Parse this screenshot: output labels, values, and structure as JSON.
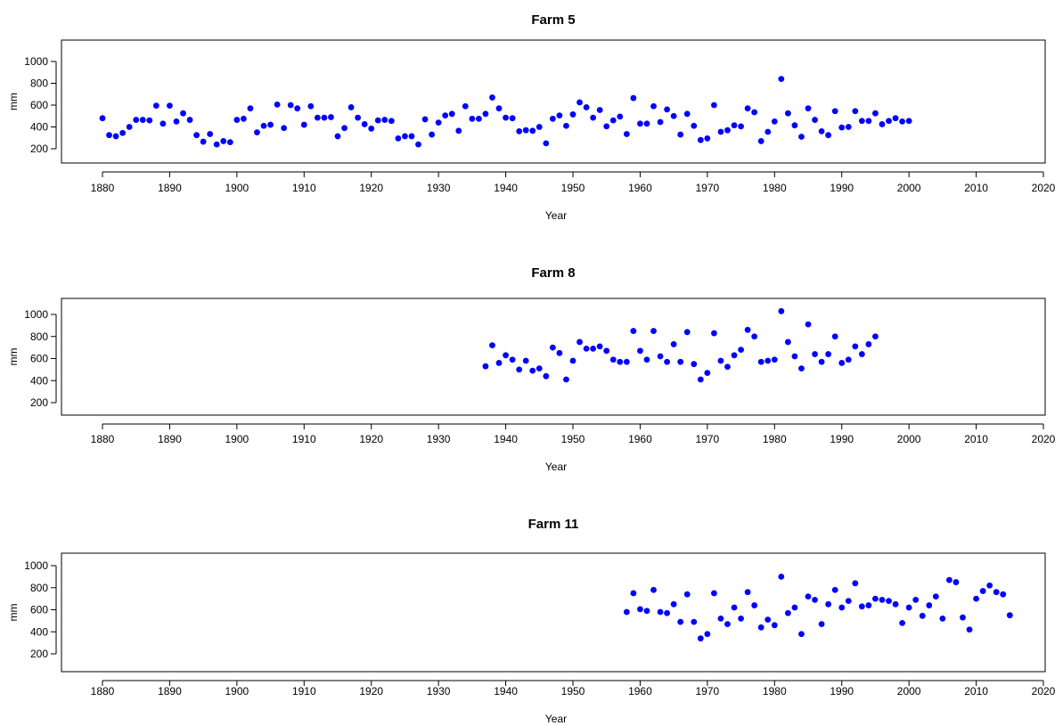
{
  "chart_data": [
    {
      "type": "scatter",
      "title": "Farm 5",
      "xlabel": "Year",
      "ylabel": "mm",
      "xlim": [
        1880,
        2020
      ],
      "ylim": [
        200,
        1000
      ],
      "xticks": [
        "1880",
        "1890",
        "1900",
        "1910",
        "1920",
        "1930",
        "1940",
        "1950",
        "1960",
        "1970",
        "1980",
        "1990",
        "2000",
        "2010",
        "2020"
      ],
      "yticks": [
        "200",
        "400",
        "600",
        "800",
        "1000"
      ],
      "grid": false,
      "point_color": "#0000ff",
      "series": [
        {
          "x": [
            1880,
            1881,
            1882,
            1883,
            1884,
            1885,
            1886,
            1887,
            1888,
            1889,
            1890,
            1891,
            1892,
            1893,
            1894,
            1895,
            1896,
            1897,
            1898,
            1899,
            1900,
            1901,
            1902,
            1903,
            1904,
            1905,
            1906,
            1907,
            1908,
            1909,
            1910,
            1911,
            1912,
            1913,
            1914,
            1915,
            1916,
            1917,
            1918,
            1919,
            1920,
            1921,
            1922,
            1923,
            1924,
            1925,
            1926,
            1927,
            1928,
            1929,
            1930,
            1931,
            1932,
            1933,
            1934,
            1935,
            1936,
            1937,
            1938,
            1939,
            1940,
            1941,
            1942,
            1943,
            1944,
            1945,
            1946,
            1947,
            1948,
            1949,
            1950,
            1951,
            1952,
            1953,
            1954,
            1955,
            1956,
            1957,
            1958,
            1959,
            1960,
            1961,
            1962,
            1963,
            1964,
            1965,
            1966,
            1967,
            1968,
            1969,
            1970,
            1971,
            1972,
            1973,
            1974,
            1975,
            1976,
            1977,
            1978,
            1979,
            1980,
            1981,
            1982,
            1983,
            1984,
            1985,
            1986,
            1987,
            1988,
            1989,
            1990,
            1991,
            1992,
            1993,
            1994,
            1995,
            1996,
            1997,
            1998,
            1999,
            2000
          ],
          "y": [
            480,
            325,
            315,
            345,
            400,
            465,
            465,
            460,
            595,
            430,
            595,
            450,
            525,
            465,
            325,
            265,
            335,
            240,
            270,
            260,
            465,
            475,
            570,
            350,
            410,
            420,
            605,
            390,
            600,
            570,
            420,
            590,
            485,
            485,
            490,
            315,
            390,
            580,
            485,
            425,
            385,
            460,
            465,
            455,
            295,
            315,
            315,
            240,
            470,
            330,
            440,
            505,
            520,
            365,
            590,
            475,
            475,
            520,
            670,
            570,
            485,
            480,
            360,
            370,
            365,
            400,
            250,
            475,
            505,
            410,
            515,
            625,
            580,
            485,
            555,
            405,
            460,
            495,
            335,
            665,
            430,
            430,
            590,
            445,
            560,
            500,
            330,
            520,
            410,
            280,
            295,
            600,
            355,
            370,
            415,
            405,
            570,
            535,
            270,
            355,
            450,
            840,
            525,
            415,
            310,
            570,
            465,
            360,
            325,
            545,
            395,
            400,
            545,
            455,
            455,
            525,
            425,
            455,
            480,
            450,
            455
          ]
        }
      ]
    },
    {
      "type": "scatter",
      "title": "Farm 8",
      "xlabel": "Year",
      "ylabel": "mm",
      "xlim": [
        1880,
        2020
      ],
      "ylim": [
        200,
        1000
      ],
      "xticks": [
        "1880",
        "1890",
        "1900",
        "1910",
        "1920",
        "1930",
        "1940",
        "1950",
        "1960",
        "1970",
        "1980",
        "1990",
        "2000",
        "2010",
        "2020"
      ],
      "yticks": [
        "200",
        "400",
        "600",
        "800",
        "1000"
      ],
      "grid": false,
      "point_color": "#0000ff",
      "series": [
        {
          "x": [
            1937,
            1938,
            1939,
            1940,
            1941,
            1942,
            1943,
            1944,
            1945,
            1946,
            1947,
            1948,
            1949,
            1950,
            1951,
            1952,
            1953,
            1954,
            1955,
            1956,
            1957,
            1958,
            1959,
            1960,
            1961,
            1962,
            1963,
            1964,
            1965,
            1966,
            1967,
            1968,
            1969,
            1970,
            1971,
            1972,
            1973,
            1974,
            1975,
            1976,
            1977,
            1978,
            1979,
            1980,
            1981,
            1982,
            1983,
            1984,
            1985,
            1986,
            1987,
            1988,
            1989,
            1990,
            1991,
            1992,
            1993,
            1994,
            1995
          ],
          "y": [
            530,
            720,
            560,
            630,
            590,
            500,
            580,
            490,
            510,
            440,
            700,
            650,
            410,
            580,
            750,
            690,
            690,
            710,
            670,
            590,
            570,
            570,
            850,
            670,
            590,
            850,
            620,
            570,
            730,
            570,
            840,
            550,
            410,
            470,
            830,
            580,
            525,
            630,
            680,
            860,
            800,
            570,
            580,
            590,
            1030,
            750,
            620,
            510,
            910,
            640,
            570,
            640,
            800,
            560,
            590,
            710,
            640,
            730,
            800
          ]
        }
      ]
    },
    {
      "type": "scatter",
      "title": "Farm 11",
      "xlabel": "Year",
      "ylabel": "mm",
      "xlim": [
        1880,
        2020
      ],
      "ylim": [
        200,
        1000
      ],
      "xticks": [
        "1880",
        "1890",
        "1900",
        "1910",
        "1920",
        "1930",
        "1940",
        "1950",
        "1960",
        "1970",
        "1980",
        "1990",
        "2000",
        "2010",
        "2020"
      ],
      "yticks": [
        "200",
        "400",
        "600",
        "800",
        "1000"
      ],
      "grid": false,
      "point_color": "#0000ff",
      "series": [
        {
          "x": [
            1958,
            1959,
            1960,
            1961,
            1962,
            1963,
            1964,
            1965,
            1966,
            1967,
            1968,
            1969,
            1970,
            1971,
            1972,
            1973,
            1974,
            1975,
            1976,
            1977,
            1978,
            1979,
            1980,
            1981,
            1982,
            1983,
            1984,
            1985,
            1986,
            1987,
            1988,
            1989,
            1990,
            1991,
            1992,
            1993,
            1994,
            1995,
            1996,
            1997,
            1998,
            1999,
            2000,
            2001,
            2002,
            2003,
            2004,
            2005,
            2006,
            2007,
            2008,
            2009,
            2010,
            2011,
            2012,
            2013,
            2014,
            2015
          ],
          "y": [
            580,
            750,
            605,
            590,
            780,
            580,
            570,
            650,
            490,
            740,
            490,
            340,
            380,
            750,
            520,
            470,
            620,
            520,
            760,
            640,
            440,
            510,
            460,
            900,
            570,
            620,
            380,
            720,
            690,
            470,
            650,
            780,
            620,
            680,
            840,
            630,
            640,
            700,
            690,
            680,
            650,
            480,
            620,
            690,
            545,
            640,
            720,
            520,
            870,
            850,
            530,
            420,
            700,
            770,
            820,
            760,
            740,
            550
          ]
        }
      ]
    }
  ]
}
